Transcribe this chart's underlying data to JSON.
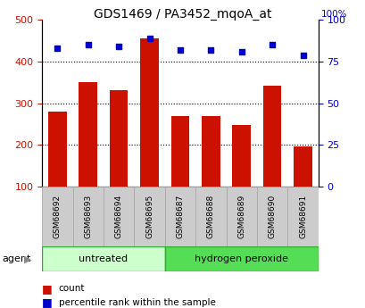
{
  "title": "GDS1469 / PA3452_mqoA_at",
  "samples": [
    "GSM68692",
    "GSM68693",
    "GSM68694",
    "GSM68695",
    "GSM68687",
    "GSM68688",
    "GSM68689",
    "GSM68690",
    "GSM68691"
  ],
  "counts": [
    280,
    350,
    332,
    455,
    268,
    270,
    247,
    342,
    197
  ],
  "percentiles": [
    83,
    85,
    84,
    89,
    82,
    82,
    81,
    85,
    79
  ],
  "groups": [
    {
      "label": "untreated",
      "start": 0,
      "end": 3
    },
    {
      "label": "hydrogen peroxide",
      "start": 4,
      "end": 8
    }
  ],
  "bar_color": "#cc1100",
  "dot_color": "#0000cc",
  "ylim_left": [
    100,
    500
  ],
  "ylim_right": [
    0,
    100
  ],
  "yticks_left": [
    100,
    200,
    300,
    400,
    500
  ],
  "yticks_right": [
    0,
    25,
    50,
    75,
    100
  ],
  "grid_lines": [
    200,
    300,
    400
  ],
  "group_colors": [
    "#ccffcc",
    "#55dd55"
  ],
  "agent_label": "agent",
  "legend_count_label": "count",
  "legend_pct_label": "percentile rank within the sample",
  "tick_area_color": "#cccccc",
  "bar_width": 0.6
}
